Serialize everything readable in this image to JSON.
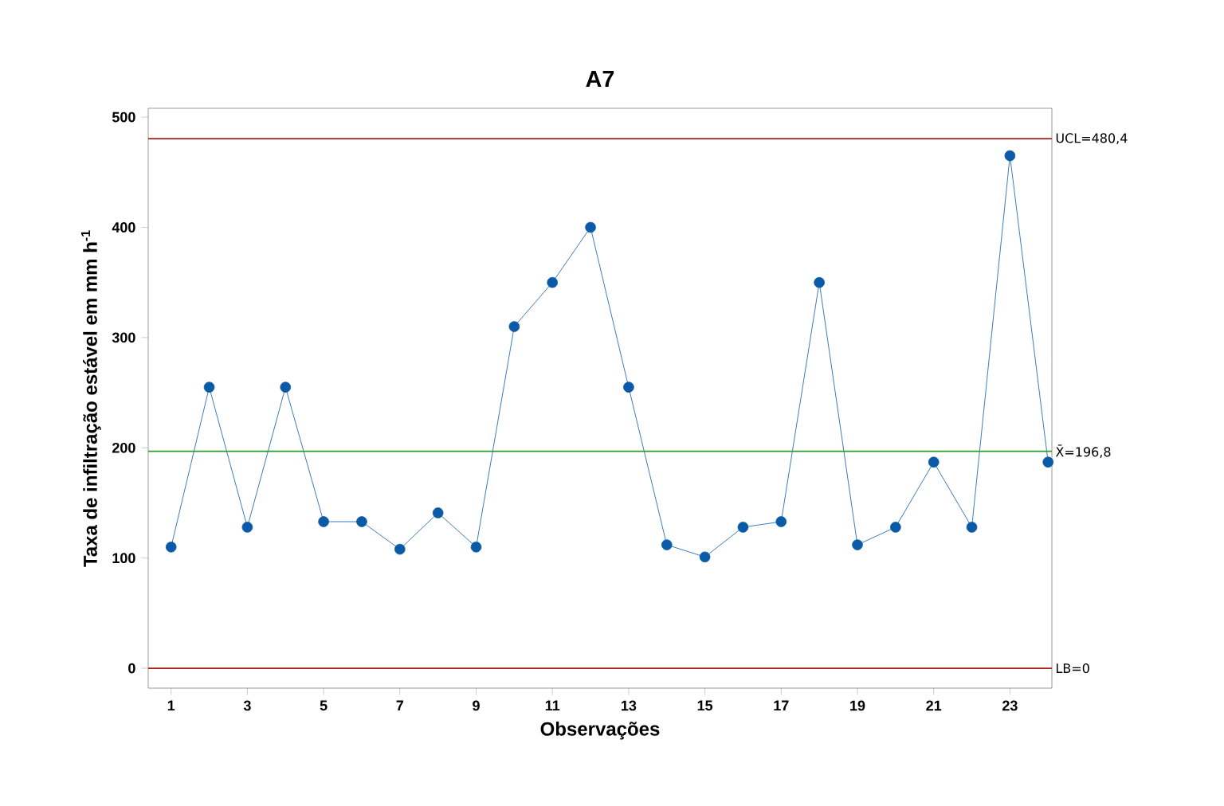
{
  "chart_data": {
    "type": "line",
    "title": "A7",
    "xlabel": "Observações",
    "ylabel": "Taxa de infiltração estável em mm h$^{-1}$",
    "x": [
      1,
      2,
      3,
      4,
      5,
      6,
      7,
      8,
      9,
      10,
      11,
      12,
      13,
      14,
      15,
      16,
      17,
      18,
      19,
      20,
      21,
      22,
      23,
      24
    ],
    "series": [
      {
        "color": "#0b5aa8",
        "values": [
          110,
          255,
          128,
          255,
          133,
          133,
          108,
          141,
          110,
          310,
          350,
          400,
          255,
          112,
          101,
          128,
          133,
          350,
          112,
          128,
          187,
          128,
          465,
          187
        ]
      }
    ],
    "xlim": [
      0.4,
      24.1
    ],
    "ylim": [
      -18,
      508
    ],
    "xticks": [
      1,
      3,
      5,
      7,
      9,
      11,
      13,
      15,
      17,
      19,
      21,
      23
    ],
    "yticks": [
      0,
      100,
      200,
      300,
      400,
      500
    ],
    "ref_lines": [
      {
        "axis": "y",
        "value": 480.4,
        "label": "UCL=480,4",
        "color": "#b01c1c"
      },
      {
        "axis": "y",
        "value": 196.8,
        "label": "X̄=196,8",
        "color": "#2e9a2e"
      },
      {
        "axis": "y",
        "value": 0,
        "label": "LB=0",
        "color": "#b01c1c"
      }
    ],
    "marker": "circle",
    "line_style": "solid"
  }
}
